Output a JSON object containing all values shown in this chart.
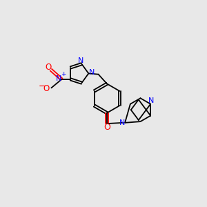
{
  "bg_color": "#e8e8e8",
  "bond_color": "#000000",
  "n_color": "#0000ff",
  "o_color": "#ff0000",
  "figsize": [
    3.0,
    3.0
  ],
  "dpi": 100,
  "xlim": [
    0,
    12
  ],
  "ylim": [
    0,
    10
  ]
}
